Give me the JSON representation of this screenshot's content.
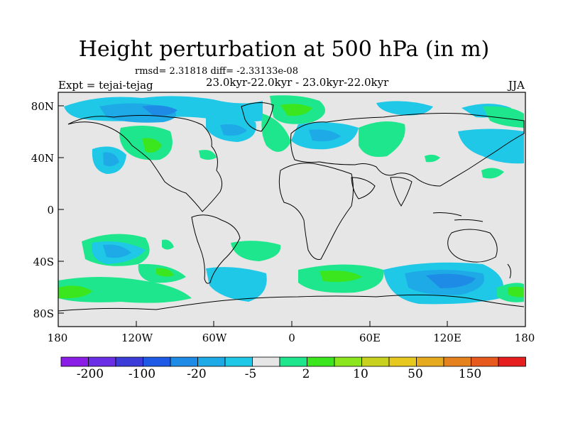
{
  "title": "Height perturbation at 500 hPa (in m)",
  "stats": "rmsd= 2.31818 diff= -2.33133e-08",
  "expt": "Expt = tejai-tejag",
  "period": "23.0kyr-22.0kyr - 23.0kyr-22.0kyr",
  "season": "JJA",
  "lat_labels": [
    "80N",
    "40N",
    "0",
    "40S",
    "80S"
  ],
  "lon_labels": [
    "180",
    "120W",
    "60W",
    "0",
    "60E",
    "120E",
    "180"
  ],
  "colorbar": {
    "labels": [
      "-200",
      "-100",
      "-20",
      "-5",
      "2",
      "10",
      "50",
      "150"
    ],
    "colors": [
      "#8a1ee6",
      "#6a2ee6",
      "#3c3cd8",
      "#1e5ae6",
      "#1e8ce6",
      "#1eaae6",
      "#1ec8e6",
      "#e6e6e6",
      "#1ee68c",
      "#3ce61e",
      "#8ce61e",
      "#c8d21e",
      "#e6c81e",
      "#e6aa1e",
      "#e6821e",
      "#e65a1e",
      "#e61e1e"
    ]
  },
  "colors": {
    "neutral": "#e6e6e6",
    "pos": "#1ee68c",
    "pos2": "#3ce61e",
    "neg": "#1ec8e6",
    "neg2": "#1eaae6",
    "neg3": "#1e8ce6"
  }
}
